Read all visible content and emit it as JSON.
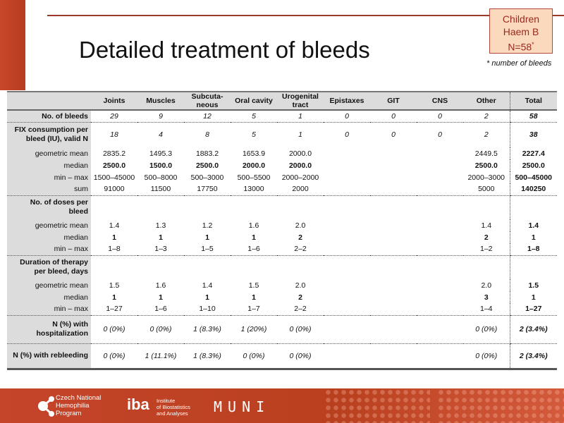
{
  "header": {
    "title": "Detailed treatment of bleeds",
    "badge": {
      "line1": "Children",
      "line2": "Haem B",
      "line3": "N=58",
      "sup": "*"
    },
    "note": "* number of bleeds"
  },
  "table": {
    "columns": [
      "Joints",
      "Muscles",
      "Subcuta-\nneous",
      "Oral cavity",
      "Urogenital tract",
      "Epistaxes",
      "GIT",
      "CNS",
      "Other",
      "Total"
    ],
    "rows": [
      {
        "label": "No. of bleeds",
        "bold": true,
        "style": "i",
        "sep": true,
        "values": [
          "29",
          "9",
          "12",
          "5",
          "1",
          "0",
          "0",
          "0",
          "2",
          "58"
        ]
      },
      {
        "label": "FIX consumption per bleed (IU), valid N",
        "bold": true,
        "style": "i",
        "h": 36,
        "values": [
          "18",
          "4",
          "8",
          "5",
          "1",
          "0",
          "0",
          "0",
          "2",
          "38"
        ]
      },
      {
        "label": "geometric mean",
        "values": [
          "2835.2",
          "1495.3",
          "1883.2",
          "1653.9",
          "2000.0",
          "",
          "",
          "",
          "2449.5",
          "2227.4"
        ]
      },
      {
        "label": "median",
        "style": "bd",
        "values": [
          "2500.0",
          "1500.0",
          "2500.0",
          "2000.0",
          "2000.0",
          "",
          "",
          "",
          "2500.0",
          "2500.0"
        ]
      },
      {
        "label": "min – max",
        "values": [
          "1500–45000",
          "500–8000",
          "500–3000",
          "500–5500",
          "2000–2000",
          "",
          "",
          "",
          "2000–3000",
          "500–45000"
        ]
      },
      {
        "label": "sum",
        "sep": true,
        "values": [
          "91000",
          "11500",
          "17750",
          "13000",
          "2000",
          "",
          "",
          "",
          "5000",
          "140250"
        ]
      },
      {
        "label": "No. of doses per bleed",
        "bold": true,
        "h": 34,
        "values": [
          "",
          "",
          "",
          "",
          "",
          "",
          "",
          "",
          "",
          ""
        ]
      },
      {
        "label": "geometric mean",
        "values": [
          "1.4",
          "1.3",
          "1.2",
          "1.6",
          "2.0",
          "",
          "",
          "",
          "1.4",
          "1.4"
        ]
      },
      {
        "label": "median",
        "style": "bd",
        "values": [
          "1",
          "1",
          "1",
          "1",
          "2",
          "",
          "",
          "",
          "2",
          "1"
        ]
      },
      {
        "label": "min – max",
        "sep": true,
        "values": [
          "1–8",
          "1–3",
          "1–5",
          "1–6",
          "2–2",
          "",
          "",
          "",
          "1–2",
          "1–8"
        ]
      },
      {
        "label": "Duration of therapy per bleed, days",
        "bold": true,
        "h": 34,
        "values": [
          "",
          "",
          "",
          "",
          "",
          "",
          "",
          "",
          "",
          ""
        ]
      },
      {
        "label": "geometric mean",
        "values": [
          "1.5",
          "1.6",
          "1.4",
          "1.5",
          "2.0",
          "",
          "",
          "",
          "2.0",
          "1.5"
        ]
      },
      {
        "label": "median",
        "style": "bd",
        "values": [
          "1",
          "1",
          "1",
          "1",
          "2",
          "",
          "",
          "",
          "3",
          "1"
        ]
      },
      {
        "label": "min – max",
        "sep": true,
        "values": [
          "1–27",
          "1–6",
          "1–10",
          "1–7",
          "2–2",
          "",
          "",
          "",
          "1–4",
          "1–27"
        ]
      },
      {
        "label": "N (%) with hospitalization",
        "bold": true,
        "style": "i",
        "h": 40,
        "sep": true,
        "values": [
          "0 (0%)",
          "0 (0%)",
          "1 (8.3%)",
          "1 (20%)",
          "0 (0%)",
          "",
          "",
          "",
          "0 (0%)",
          "2 (3.4%)"
        ]
      },
      {
        "label": "N (%) with rebleeding",
        "bold": true,
        "style": "i",
        "h": 36,
        "values": [
          "0 (0%)",
          "1 (11.1%)",
          "1 (8.3%)",
          "0 (0%)",
          "0 (0%)",
          "",
          "",
          "",
          "0 (0%)",
          "2 (3.4%)"
        ]
      }
    ]
  },
  "footer": {
    "logo1": [
      "Czech National",
      "Hemophilia",
      "Program"
    ],
    "logo2_mark": "iba",
    "logo2": [
      "Institute",
      "of Biostatistics",
      "and Analyses"
    ],
    "logo3": "MUNI"
  },
  "colors": {
    "accent": "#c5442a",
    "badge_bg": "#fbd9bd",
    "badge_text": "#9b2a1e",
    "label_bg": "#dcdcdc"
  }
}
